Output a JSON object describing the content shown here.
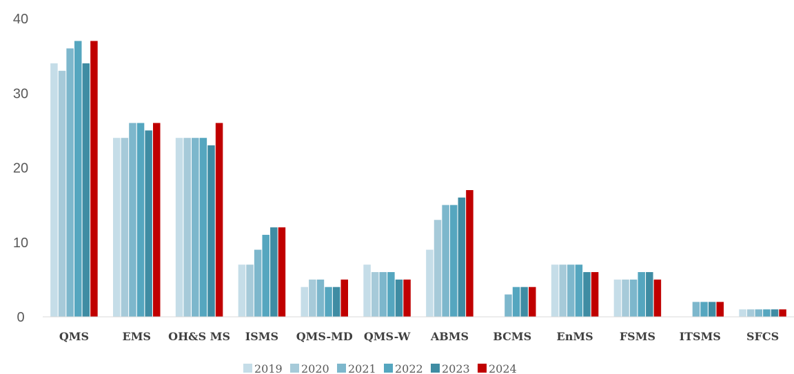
{
  "chart_data": {
    "type": "bar",
    "categories": [
      "QMS",
      "EMS",
      "OH&S MS",
      "ISMS",
      "QMS-MD",
      "QMS-W",
      "ABMS",
      "BCMS",
      "EnMS",
      "FSMS",
      "ITSMS",
      "SFCS"
    ],
    "series": [
      {
        "name": "2019",
        "color": "#c5dde8",
        "values": [
          34,
          24,
          24,
          7,
          4,
          7,
          9,
          0,
          7,
          5,
          0,
          1
        ]
      },
      {
        "name": "2020",
        "color": "#a6cad9",
        "values": [
          33,
          24,
          24,
          7,
          5,
          6,
          13,
          0,
          7,
          5,
          0,
          1
        ]
      },
      {
        "name": "2021",
        "color": "#7db7cc",
        "values": [
          36,
          26,
          24,
          9,
          5,
          6,
          15,
          3,
          7,
          5,
          2,
          1
        ]
      },
      {
        "name": "2022",
        "color": "#55a6bf",
        "values": [
          37,
          26,
          24,
          11,
          4,
          6,
          15,
          4,
          7,
          6,
          2,
          1
        ]
      },
      {
        "name": "2023",
        "color": "#3f8ca3",
        "values": [
          34,
          25,
          23,
          12,
          4,
          5,
          16,
          4,
          6,
          6,
          2,
          1
        ]
      },
      {
        "name": "2024",
        "color": "#c00000",
        "values": [
          37,
          26,
          26,
          12,
          5,
          5,
          17,
          4,
          6,
          5,
          2,
          1
        ]
      }
    ],
    "ylim": [
      0,
      40
    ],
    "yticks": [
      0,
      10,
      20,
      30,
      40
    ],
    "title": "",
    "xlabel": "",
    "ylabel": "",
    "grid": false,
    "legend_position": "bottom-center"
  }
}
